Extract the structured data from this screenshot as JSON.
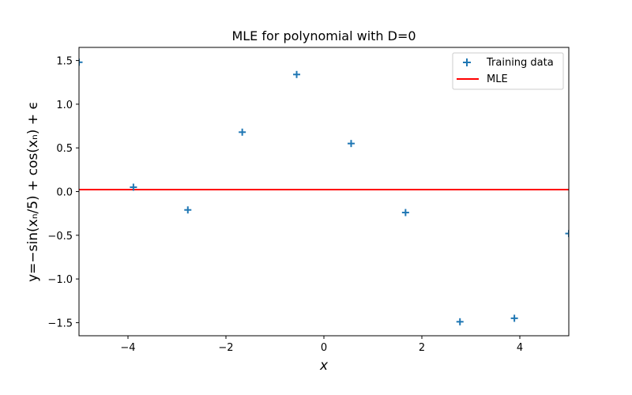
{
  "chart_data": {
    "type": "scatter",
    "title": "MLE for polynomial with D=0",
    "xlabel": "x",
    "ylabel": "y=−sin(xₙ/5) + cos(xₙ) + ϵ",
    "xlim": [
      -5,
      5
    ],
    "ylim": [
      -1.65,
      1.65
    ],
    "xticks": [
      -4,
      -2,
      0,
      2,
      4
    ],
    "xtick_labels": [
      "−4",
      "−2",
      "0",
      "2",
      "4"
    ],
    "yticks": [
      -1.5,
      -1.0,
      -0.5,
      0.0,
      0.5,
      1.0,
      1.5
    ],
    "ytick_labels": [
      "−1.5",
      "−1.0",
      "−0.5",
      "0.0",
      "0.5",
      "1.0",
      "1.5"
    ],
    "grid": false,
    "legend_position": "top-right",
    "series": [
      {
        "name": "Training data",
        "marker": "plus",
        "color": "#1f77b4",
        "x": [
          -5.0,
          -3.889,
          -2.778,
          -1.667,
          -0.556,
          0.556,
          1.667,
          2.778,
          3.889,
          5.0
        ],
        "y": [
          1.48,
          0.05,
          -0.21,
          0.68,
          1.34,
          0.55,
          -0.24,
          -1.49,
          -1.45,
          -0.48
        ]
      },
      {
        "name": "MLE",
        "type": "line",
        "color": "#ff0000",
        "x": [
          -5,
          5
        ],
        "y": [
          0.023,
          0.023
        ]
      }
    ]
  }
}
